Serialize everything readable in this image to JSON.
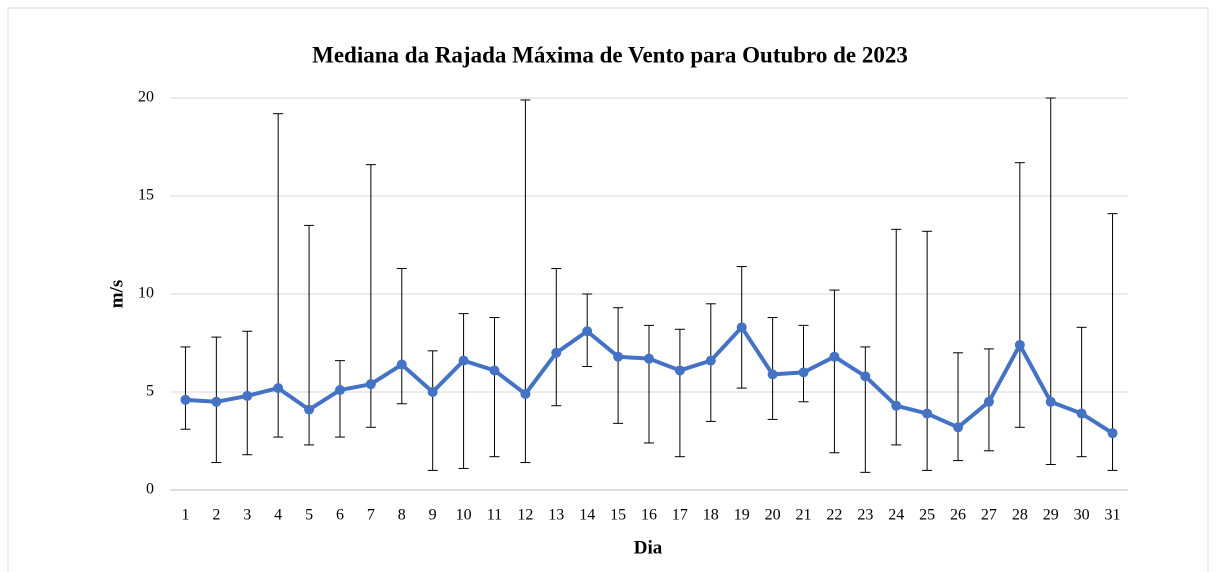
{
  "chart_data": {
    "type": "line",
    "title": "Mediana da Rajada Máxima de Vento para Outubro de 2023",
    "xlabel": "Dia",
    "ylabel": "m/s",
    "categories": [
      "1",
      "2",
      "3",
      "4",
      "5",
      "6",
      "7",
      "8",
      "9",
      "10",
      "11",
      "12",
      "13",
      "14",
      "15",
      "16",
      "17",
      "18",
      "19",
      "20",
      "21",
      "22",
      "23",
      "24",
      "25",
      "26",
      "27",
      "28",
      "29",
      "30",
      "31"
    ],
    "values": [
      4.6,
      4.5,
      4.8,
      5.2,
      4.1,
      5.1,
      5.4,
      6.4,
      5.0,
      6.6,
      6.1,
      4.9,
      7.0,
      8.1,
      6.8,
      6.7,
      6.1,
      6.6,
      8.3,
      5.9,
      6.0,
      6.8,
      5.8,
      4.3,
      3.9,
      3.2,
      4.5,
      7.4,
      4.5,
      3.9,
      2.9
    ],
    "lows": [
      3.1,
      1.4,
      1.8,
      2.7,
      2.3,
      2.7,
      3.2,
      4.4,
      1.0,
      1.1,
      1.7,
      1.4,
      4.3,
      6.3,
      3.4,
      2.4,
      1.7,
      3.5,
      5.2,
      3.6,
      4.5,
      1.9,
      0.9,
      2.3,
      1.0,
      1.5,
      2.0,
      3.2,
      1.3,
      1.7,
      1.0
    ],
    "highs": [
      7.3,
      7.8,
      8.1,
      19.2,
      13.5,
      6.6,
      16.6,
      11.3,
      7.1,
      9.0,
      8.8,
      19.9,
      11.3,
      10.0,
      9.3,
      8.4,
      8.2,
      9.5,
      11.4,
      8.8,
      8.4,
      10.2,
      7.3,
      13.3,
      13.2,
      7.0,
      7.2,
      16.7,
      20,
      8.3,
      14.1
    ],
    "color": "#4472c4",
    "ylim": [
      0,
      20
    ],
    "yticks": [
      0,
      5,
      10,
      15,
      20
    ],
    "grid": true
  }
}
